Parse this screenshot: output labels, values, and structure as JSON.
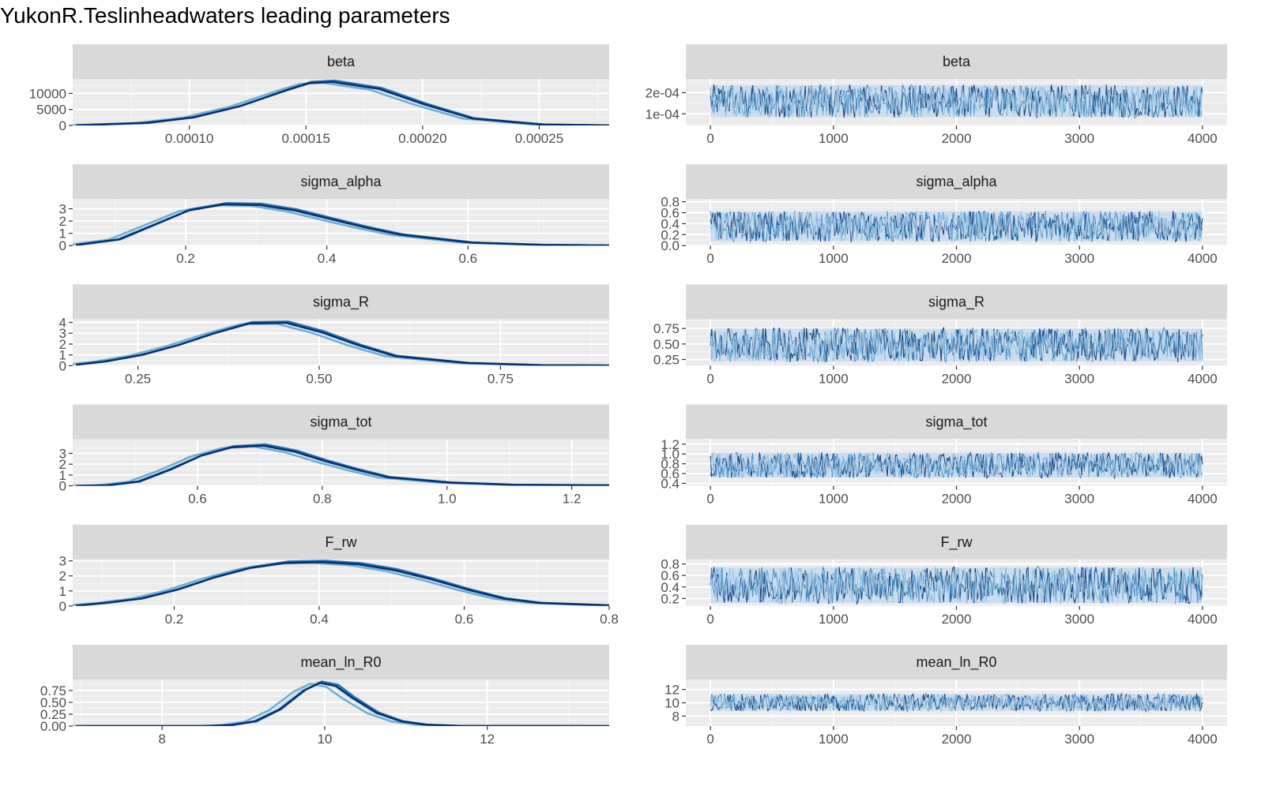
{
  "title": "YukonR.Teslinheadwaters leading parameters",
  "colors": {
    "panel_bg": "#ebebeb",
    "strip_bg": "#d9d9d9",
    "grid_major": "#ffffff",
    "tick_text": "#4d4d4d",
    "chains": [
      "#08306b",
      "#2171b5",
      "#6baed6",
      "#c6dbef"
    ]
  },
  "chart_data": [
    {
      "type": "area",
      "kind": "density",
      "param": "beta",
      "xlim": [
        5e-05,
        0.00028
      ],
      "ylim": [
        0,
        14500
      ],
      "x_ticks": [
        0.0001,
        0.00015,
        0.0002,
        0.00025
      ],
      "x_tick_labels": [
        "0.00010",
        "0.00015",
        "0.00020",
        "0.00025"
      ],
      "y_ticks": [
        0,
        5000,
        10000
      ],
      "y_tick_labels": [
        "0",
        "5000",
        "10000"
      ],
      "x": [
        5e-05,
        8e-05,
        0.0001,
        0.00012,
        0.00014,
        0.00015,
        0.00016,
        0.00018,
        0.0002,
        0.00022,
        0.00025,
        0.00028
      ],
      "y": [
        50,
        800,
        2500,
        6000,
        11000,
        13300,
        13700,
        11500,
        6500,
        2200,
        300,
        20
      ]
    },
    {
      "type": "line",
      "kind": "trace",
      "param": "beta",
      "x_range": [
        0,
        4000
      ],
      "ylim": [
        4.5e-05,
        0.000265
      ],
      "x_ticks": [
        0,
        1000,
        2000,
        3000,
        4000
      ],
      "x_tick_labels": [
        "0",
        "1000",
        "2000",
        "3000",
        "4000"
      ],
      "y_ticks": [
        0.0001,
        0.0002
      ],
      "y_tick_labels": [
        "1e-04",
        "2e-04"
      ],
      "band": [
        8.5e-05,
        0.000235
      ],
      "center": 0.000158
    },
    {
      "type": "area",
      "kind": "density",
      "param": "sigma_alpha",
      "xlim": [
        0.04,
        0.8
      ],
      "ylim": [
        0,
        3.8
      ],
      "x_ticks": [
        0.2,
        0.4,
        0.6
      ],
      "x_tick_labels": [
        "0.2",
        "0.4",
        "0.6"
      ],
      "y_ticks": [
        0,
        1,
        2,
        3
      ],
      "y_tick_labels": [
        "0",
        "1",
        "2",
        "3"
      ],
      "x": [
        0.04,
        0.1,
        0.15,
        0.2,
        0.25,
        0.3,
        0.35,
        0.4,
        0.45,
        0.5,
        0.6,
        0.7,
        0.8
      ],
      "y": [
        0.05,
        0.5,
        1.7,
        2.9,
        3.4,
        3.35,
        2.9,
        2.2,
        1.5,
        0.9,
        0.25,
        0.06,
        0.01
      ]
    },
    {
      "type": "line",
      "kind": "trace",
      "param": "sigma_alpha",
      "x_range": [
        0,
        4000
      ],
      "ylim": [
        0,
        0.85
      ],
      "x_ticks": [
        0,
        1000,
        2000,
        3000,
        4000
      ],
      "x_tick_labels": [
        "0",
        "1000",
        "2000",
        "3000",
        "4000"
      ],
      "y_ticks": [
        0,
        0.2,
        0.4,
        0.6,
        0.8
      ],
      "y_tick_labels": [
        "0.0",
        "0.2",
        "0.4",
        "0.6",
        "0.8"
      ],
      "band": [
        0.08,
        0.62
      ],
      "center": 0.3
    },
    {
      "type": "area",
      "kind": "density",
      "param": "sigma_R",
      "xlim": [
        0.16,
        0.9
      ],
      "ylim": [
        0,
        4.3
      ],
      "x_ticks": [
        0.25,
        0.5,
        0.75
      ],
      "x_tick_labels": [
        "0.25",
        "0.50",
        "0.75"
      ],
      "y_ticks": [
        0,
        1,
        2,
        3,
        4
      ],
      "y_tick_labels": [
        "0",
        "1",
        "2",
        "3",
        "4"
      ],
      "x": [
        0.16,
        0.2,
        0.25,
        0.3,
        0.35,
        0.4,
        0.45,
        0.5,
        0.55,
        0.6,
        0.7,
        0.8,
        0.9
      ],
      "y": [
        0.1,
        0.4,
        1.0,
        1.9,
        3.0,
        3.95,
        4.0,
        3.1,
        1.9,
        0.9,
        0.25,
        0.06,
        0.02
      ]
    },
    {
      "type": "line",
      "kind": "trace",
      "param": "sigma_R",
      "x_range": [
        0,
        4000
      ],
      "ylim": [
        0.15,
        0.9
      ],
      "x_ticks": [
        0,
        1000,
        2000,
        3000,
        4000
      ],
      "x_tick_labels": [
        "0",
        "1000",
        "2000",
        "3000",
        "4000"
      ],
      "y_ticks": [
        0.25,
        0.5,
        0.75
      ],
      "y_tick_labels": [
        "0.25",
        "0.50",
        "0.75"
      ],
      "band": [
        0.22,
        0.75
      ],
      "center": 0.43
    },
    {
      "type": "area",
      "kind": "density",
      "param": "sigma_tot",
      "xlim": [
        0.4,
        1.26
      ],
      "ylim": [
        0,
        4.3
      ],
      "x_ticks": [
        0.6,
        0.8,
        1.0,
        1.2
      ],
      "x_tick_labels": [
        "0.6",
        "0.8",
        "1.0",
        "1.2"
      ],
      "y_ticks": [
        0,
        1,
        2,
        3
      ],
      "y_tick_labels": [
        "0",
        "1",
        "2",
        "3"
      ],
      "x": [
        0.4,
        0.45,
        0.5,
        0.55,
        0.6,
        0.65,
        0.7,
        0.75,
        0.8,
        0.85,
        0.9,
        1.0,
        1.1,
        1.26
      ],
      "y": [
        0.0,
        0.05,
        0.4,
        1.5,
        2.8,
        3.6,
        3.75,
        3.2,
        2.3,
        1.5,
        0.8,
        0.3,
        0.1,
        0.05
      ]
    },
    {
      "type": "line",
      "kind": "trace",
      "param": "sigma_tot",
      "x_range": [
        0,
        4000
      ],
      "ylim": [
        0.35,
        1.3
      ],
      "x_ticks": [
        0,
        1000,
        2000,
        3000,
        4000
      ],
      "x_tick_labels": [
        "0",
        "1000",
        "2000",
        "3000",
        "4000"
      ],
      "y_ticks": [
        0.4,
        0.6,
        0.8,
        1.0,
        1.2
      ],
      "y_tick_labels": [
        "0.4",
        "0.6",
        "0.8",
        "1.0",
        "1.2"
      ],
      "band": [
        0.52,
        1.02
      ],
      "center": 0.72
    },
    {
      "type": "area",
      "kind": "density",
      "param": "F_rw",
      "xlim": [
        0.06,
        0.8
      ],
      "ylim": [
        0,
        3.1
      ],
      "x_ticks": [
        0.2,
        0.4,
        0.6,
        0.8
      ],
      "x_tick_labels": [
        "0.2",
        "0.4",
        "0.6",
        "0.8"
      ],
      "y_ticks": [
        0,
        1,
        2,
        3
      ],
      "y_tick_labels": [
        "0",
        "1",
        "2",
        "3"
      ],
      "x": [
        0.06,
        0.1,
        0.15,
        0.2,
        0.25,
        0.3,
        0.35,
        0.4,
        0.45,
        0.5,
        0.55,
        0.6,
        0.65,
        0.7,
        0.8
      ],
      "y": [
        0.02,
        0.2,
        0.5,
        1.1,
        1.9,
        2.55,
        2.9,
        2.95,
        2.8,
        2.4,
        1.8,
        1.1,
        0.5,
        0.2,
        0.03
      ]
    },
    {
      "type": "line",
      "kind": "trace",
      "param": "F_rw",
      "x_range": [
        0,
        4000
      ],
      "ylim": [
        0.07,
        0.88
      ],
      "x_ticks": [
        0,
        1000,
        2000,
        3000,
        4000
      ],
      "x_tick_labels": [
        "0",
        "1000",
        "2000",
        "3000",
        "4000"
      ],
      "y_ticks": [
        0.2,
        0.4,
        0.6,
        0.8
      ],
      "y_tick_labels": [
        "0.2",
        "0.4",
        "0.6",
        "0.8"
      ],
      "band": [
        0.12,
        0.74
      ],
      "center": 0.4
    },
    {
      "type": "area",
      "kind": "density",
      "param": "mean_ln_R0",
      "xlim": [
        6.9,
        13.5
      ],
      "ylim": [
        0,
        0.98
      ],
      "x_ticks": [
        8,
        10,
        12
      ],
      "x_tick_labels": [
        "8",
        "10",
        "12"
      ],
      "y_ticks": [
        0,
        0.25,
        0.5,
        0.75
      ],
      "y_tick_labels": [
        "0.00",
        "0.25",
        "0.50",
        "0.75"
      ],
      "x": [
        6.9,
        8.5,
        8.8,
        9.1,
        9.4,
        9.7,
        9.9,
        10.1,
        10.3,
        10.6,
        10.9,
        11.2,
        11.6,
        13.5
      ],
      "y": [
        0.0,
        0.0,
        0.02,
        0.1,
        0.35,
        0.75,
        0.92,
        0.85,
        0.6,
        0.28,
        0.1,
        0.03,
        0.005,
        0.0
      ]
    },
    {
      "type": "line",
      "kind": "trace",
      "param": "mean_ln_R0",
      "x_range": [
        0,
        4000
      ],
      "ylim": [
        6.5,
        13.5
      ],
      "x_ticks": [
        0,
        1000,
        2000,
        3000,
        4000
      ],
      "x_tick_labels": [
        "0",
        "1000",
        "2000",
        "3000",
        "4000"
      ],
      "y_ticks": [
        8,
        10,
        12
      ],
      "y_tick_labels": [
        "8",
        "10",
        "12"
      ],
      "band": [
        8.8,
        11.3
      ],
      "center": 9.9
    }
  ]
}
